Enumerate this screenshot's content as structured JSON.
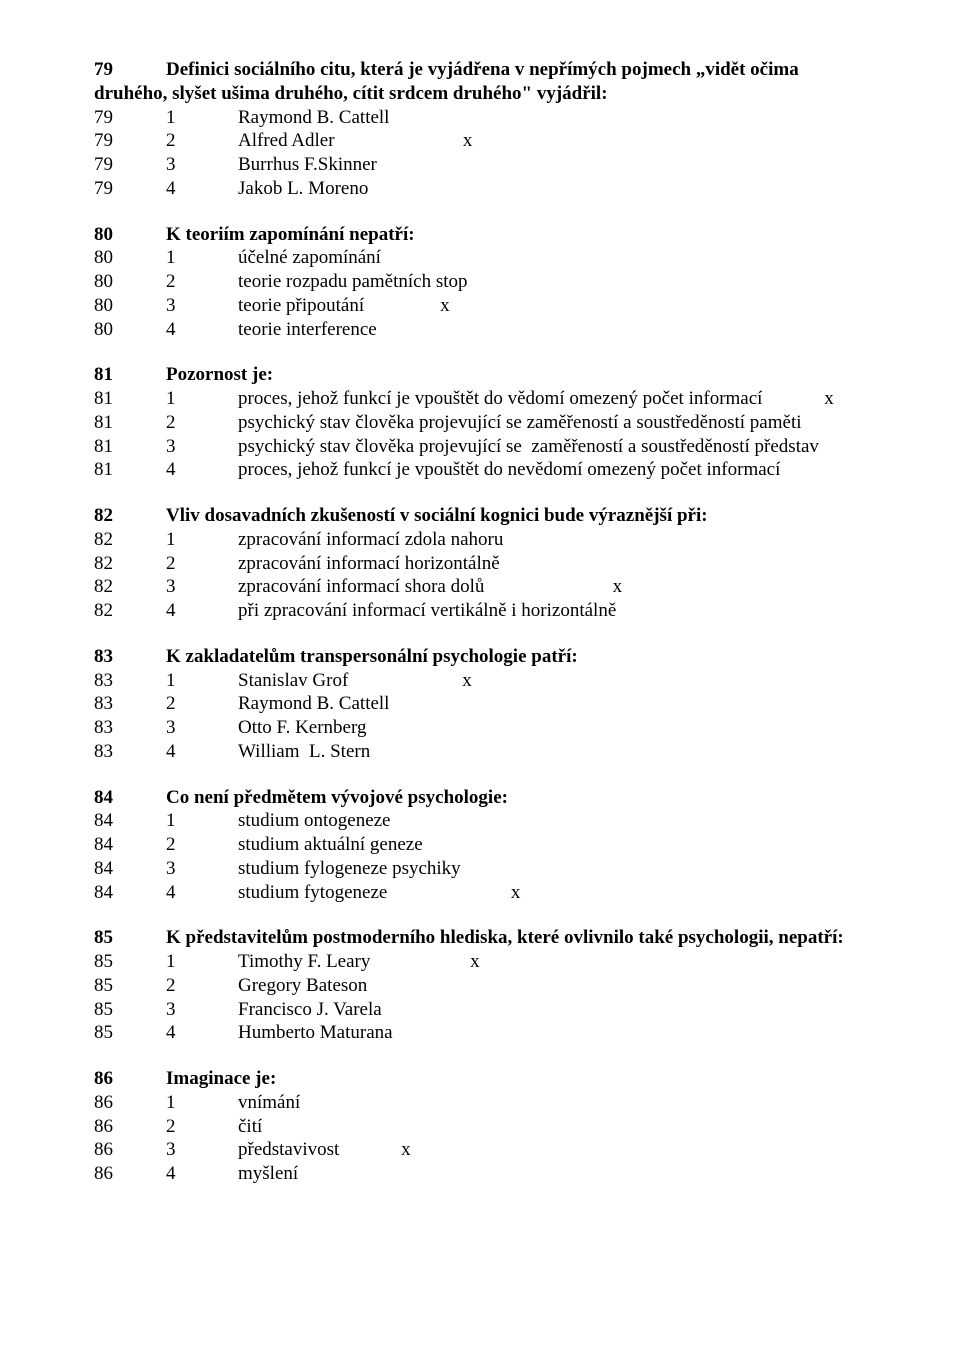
{
  "questions": [
    {
      "num": "79",
      "text": "Definici sociálního citu, která je vyjádřena v nepřímých pojmech „vidět očima druhého, slyšet ušima druhého, cítit srdcem druhého\"  vyjádřil:",
      "wrap": true,
      "options": [
        {
          "n": "79",
          "i": "1",
          "t": "Raymond B. Cattell",
          "mark": ""
        },
        {
          "n": "79",
          "i": "2",
          "t": "Alfred Adler",
          "mark": "x",
          "gap": "                           "
        },
        {
          "n": "79",
          "i": "3",
          "t": "Burrhus F.Skinner",
          "mark": ""
        },
        {
          "n": "79",
          "i": "4",
          "t": "Jakob L. Moreno",
          "mark": ""
        }
      ]
    },
    {
      "num": "80",
      "text": "K teoriím zapomínání nepatří:",
      "options": [
        {
          "n": "80",
          "i": "1",
          "t": "účelné zapomínání",
          "mark": ""
        },
        {
          "n": "80",
          "i": "2",
          "t": "teorie rozpadu pamětních stop",
          "mark": ""
        },
        {
          "n": "80",
          "i": "3",
          "t": "teorie připoutání",
          "mark": "x",
          "gap": "                "
        },
        {
          "n": "80",
          "i": "4",
          "t": "teorie interference",
          "mark": ""
        }
      ]
    },
    {
      "num": "81",
      "text": "Pozornost je:",
      "options": [
        {
          "n": "81",
          "i": "1",
          "t": "proces, jehož funkcí je vpouštět do vědomí omezený počet informací",
          "mark": "x",
          "gap": "             "
        },
        {
          "n": "81",
          "i": "2",
          "t": "psychický stav člověka projevující se zaměřeností a soustředěností paměti",
          "mark": ""
        },
        {
          "n": "81",
          "i": "3",
          "t": "psychický stav člověka projevující se  zaměřeností a soustředěností představ",
          "mark": ""
        },
        {
          "n": "81",
          "i": "4",
          "t": "proces, jehož funkcí je vpouštět do nevědomí omezený počet informací",
          "mark": ""
        }
      ]
    },
    {
      "num": "82",
      "text": "Vliv dosavadních zkušeností v sociální kognici bude výraznější při:",
      "options": [
        {
          "n": "82",
          "i": "1",
          "t": "zpracování informací zdola nahoru",
          "mark": ""
        },
        {
          "n": "82",
          "i": "2",
          "t": "zpracování informací horizontálně",
          "mark": ""
        },
        {
          "n": "82",
          "i": "3",
          "t": "zpracování informací shora dolů",
          "mark": "x",
          "gap": "                           "
        },
        {
          "n": "82",
          "i": "4",
          "t": "při zpracování informací vertikálně i horizontálně",
          "mark": ""
        }
      ]
    },
    {
      "num": "83",
      "text": "K zakladatelům transpersonální psychologie patří:",
      "options": [
        {
          "n": "83",
          "i": "1",
          "t": "Stanislav Grof",
          "mark": "x",
          "gap": "                        "
        },
        {
          "n": "83",
          "i": "2",
          "t": "Raymond B. Cattell",
          "mark": ""
        },
        {
          "n": "83",
          "i": "3",
          "t": "Otto F. Kernberg",
          "mark": ""
        },
        {
          "n": "83",
          "i": "4",
          "t": "William  L. Stern",
          "mark": ""
        }
      ]
    },
    {
      "num": "84",
      "text": "Co není předmětem vývojové psychologie:",
      "options": [
        {
          "n": "84",
          "i": "1",
          "t": "studium ontogeneze",
          "mark": ""
        },
        {
          "n": "84",
          "i": "2",
          "t": "studium aktuální geneze",
          "mark": ""
        },
        {
          "n": "84",
          "i": "3",
          "t": "studium fylogeneze psychiky",
          "mark": ""
        },
        {
          "n": "84",
          "i": "4",
          "t": "studium fytogeneze",
          "mark": "x",
          "gap": "                          "
        }
      ]
    },
    {
      "num": "85",
      "text": "K představitelům postmoderního hlediska, které ovlivnilo také psychologii, nepatří:",
      "options": [
        {
          "n": "85",
          "i": "1",
          "t": "Timothy F. Leary",
          "mark": "x",
          "gap": "                     "
        },
        {
          "n": "85",
          "i": "2",
          "t": "Gregory Bateson",
          "mark": ""
        },
        {
          "n": "85",
          "i": "3",
          "t": "Francisco J. Varela",
          "mark": ""
        },
        {
          "n": "85",
          "i": "4",
          "t": "Humberto Maturana",
          "mark": ""
        }
      ]
    },
    {
      "num": "86",
      "text": "Imaginace je:",
      "options": [
        {
          "n": "86",
          "i": "1",
          "t": "vnímání",
          "mark": ""
        },
        {
          "n": "86",
          "i": "2",
          "t": "čití",
          "mark": ""
        },
        {
          "n": "86",
          "i": "3",
          "t": "představivost",
          "mark": "x",
          "gap": "             "
        },
        {
          "n": "86",
          "i": "4",
          "t": "myšlení",
          "mark": ""
        }
      ]
    }
  ]
}
